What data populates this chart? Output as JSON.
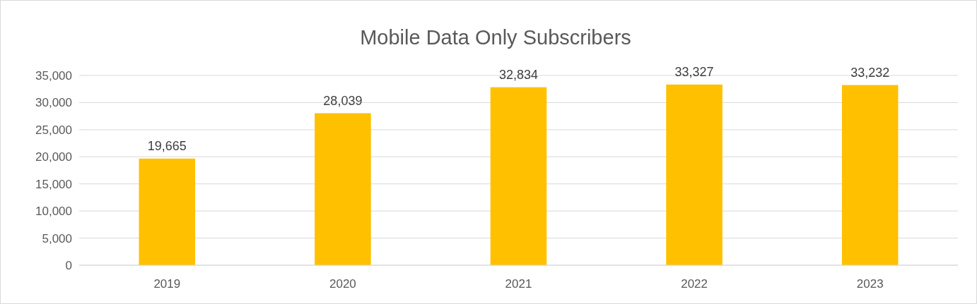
{
  "chart_data": {
    "type": "bar",
    "title": "Mobile Data Only Subscribers",
    "categories": [
      "2019",
      "2020",
      "2021",
      "2022",
      "2023"
    ],
    "values": [
      19665,
      28039,
      32834,
      33327,
      33232
    ],
    "color": "#ffc000",
    "ylim": [
      0,
      35000
    ],
    "yticks": [
      0,
      {
        "value": 5000,
        "label": "5,000"
      },
      {
        "value": 10000,
        "label": "10,000"
      },
      {
        "value": 15000,
        "label": "15,000"
      },
      {
        "value": 20000,
        "label": "20,000"
      },
      {
        "value": 25000,
        "label": "25,000"
      },
      {
        "value": 30000,
        "label": "30,000"
      },
      {
        "value": 35000,
        "label": "35,000"
      }
    ],
    "grid": "y",
    "value_labels": [
      "19,665",
      "28,039",
      "32,834",
      "33,327",
      "33,232"
    ]
  }
}
